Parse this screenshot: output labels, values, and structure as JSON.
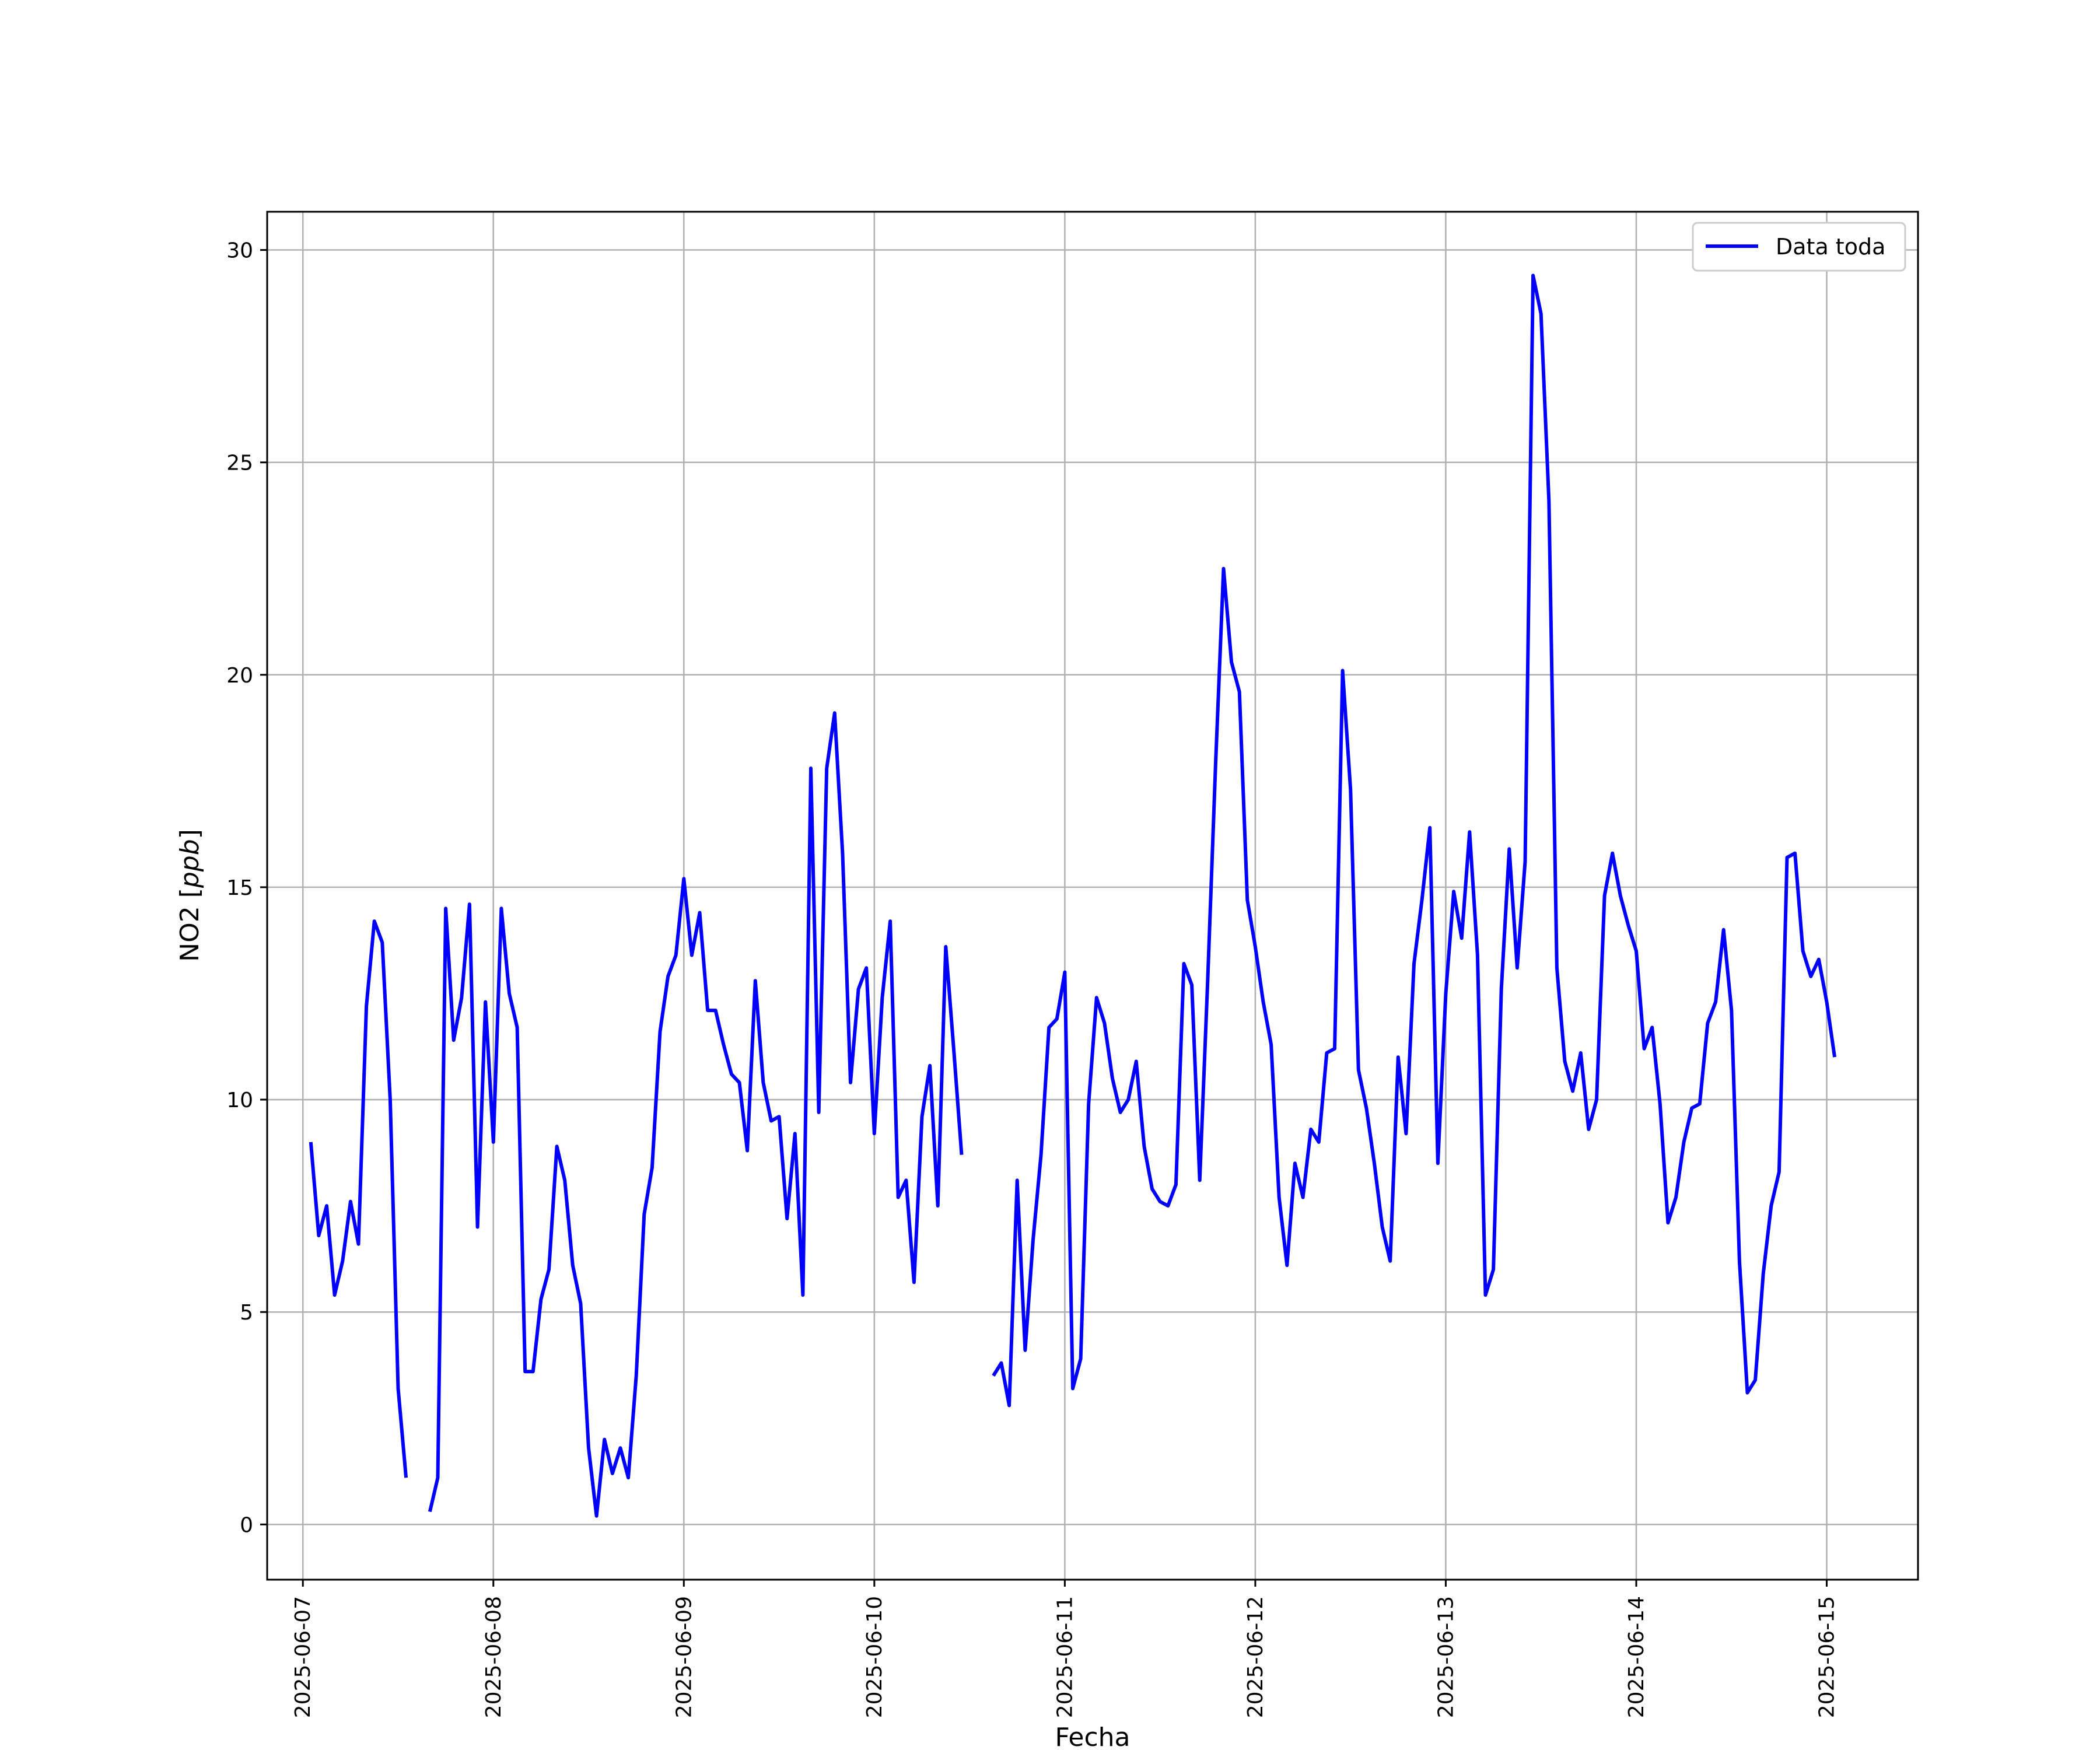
{
  "chart_data": {
    "type": "line",
    "xlabel": "Fecha",
    "ylabel": "NO2 [ppb]",
    "ylabel_main": "NO2 [",
    "ylabel_unit": "ppb",
    "ylabel_close": "]",
    "ylim": [
      -1.3,
      30.9
    ],
    "xlim": [
      "2025-06-06 19:30",
      "2025-06-15 11:30"
    ],
    "x_ticks": [
      "2025-06-07",
      "2025-06-08",
      "2025-06-09",
      "2025-06-10",
      "2025-06-11",
      "2025-06-12",
      "2025-06-13",
      "2025-06-14",
      "2025-06-15"
    ],
    "y_ticks": [
      0,
      5,
      10,
      15,
      20,
      25,
      30
    ],
    "y_tick_labels": [
      "0",
      "5",
      "10",
      "15",
      "20",
      "25",
      "30"
    ],
    "grid": true,
    "legend_position": "top-right",
    "series": [
      {
        "name": "Data toda",
        "color": "#0000ff",
        "points": [
          [
            "2025-06-07 01:00",
            9.0
          ],
          [
            "2025-06-07 02:00",
            6.8
          ],
          [
            "2025-06-07 03:00",
            7.5
          ],
          [
            "2025-06-07 04:00",
            5.4
          ],
          [
            "2025-06-07 05:00",
            6.2
          ],
          [
            "2025-06-07 06:00",
            7.6
          ],
          [
            "2025-06-07 07:00",
            6.6
          ],
          [
            "2025-06-07 08:00",
            12.2
          ],
          [
            "2025-06-07 09:00",
            14.2
          ],
          [
            "2025-06-07 10:00",
            13.7
          ],
          [
            "2025-06-07 11:00",
            10.0
          ],
          [
            "2025-06-07 12:00",
            3.2
          ],
          [
            "2025-06-07 13:00",
            1.1
          ],
          [
            "2025-06-07 14:00",
            null
          ],
          [
            "2025-06-07 15:00",
            null
          ],
          [
            "2025-06-07 16:00",
            0.3
          ],
          [
            "2025-06-07 17:00",
            1.1
          ],
          [
            "2025-06-07 18:00",
            14.5
          ],
          [
            "2025-06-07 19:00",
            11.4
          ],
          [
            "2025-06-07 20:00",
            12.4
          ],
          [
            "2025-06-07 21:00",
            14.6
          ],
          [
            "2025-06-07 22:00",
            7.0
          ],
          [
            "2025-06-07 23:00",
            12.3
          ],
          [
            "2025-06-08 00:00",
            9.0
          ],
          [
            "2025-06-08 01:00",
            14.5
          ],
          [
            "2025-06-08 02:00",
            12.5
          ],
          [
            "2025-06-08 03:00",
            11.7
          ],
          [
            "2025-06-08 04:00",
            3.6
          ],
          [
            "2025-06-08 05:00",
            3.6
          ],
          [
            "2025-06-08 06:00",
            5.3
          ],
          [
            "2025-06-08 07:00",
            6.0
          ],
          [
            "2025-06-08 08:00",
            8.9
          ],
          [
            "2025-06-08 09:00",
            8.1
          ],
          [
            "2025-06-08 10:00",
            6.1
          ],
          [
            "2025-06-08 11:00",
            5.2
          ],
          [
            "2025-06-08 12:00",
            1.8
          ],
          [
            "2025-06-08 13:00",
            0.2
          ],
          [
            "2025-06-08 14:00",
            2.0
          ],
          [
            "2025-06-08 15:00",
            1.2
          ],
          [
            "2025-06-08 16:00",
            1.8
          ],
          [
            "2025-06-08 17:00",
            1.1
          ],
          [
            "2025-06-08 18:00",
            3.5
          ],
          [
            "2025-06-08 19:00",
            7.3
          ],
          [
            "2025-06-08 20:00",
            8.4
          ],
          [
            "2025-06-08 21:00",
            11.6
          ],
          [
            "2025-06-08 22:00",
            12.9
          ],
          [
            "2025-06-08 23:00",
            13.4
          ],
          [
            "2025-06-09 00:00",
            15.2
          ],
          [
            "2025-06-09 01:00",
            13.4
          ],
          [
            "2025-06-09 02:00",
            14.4
          ],
          [
            "2025-06-09 03:00",
            12.1
          ],
          [
            "2025-06-09 04:00",
            12.1
          ],
          [
            "2025-06-09 05:00",
            11.3
          ],
          [
            "2025-06-09 06:00",
            10.6
          ],
          [
            "2025-06-09 07:00",
            10.4
          ],
          [
            "2025-06-09 08:00",
            8.8
          ],
          [
            "2025-06-09 09:00",
            12.8
          ],
          [
            "2025-06-09 10:00",
            10.4
          ],
          [
            "2025-06-09 11:00",
            9.5
          ],
          [
            "2025-06-09 12:00",
            9.6
          ],
          [
            "2025-06-09 13:00",
            7.2
          ],
          [
            "2025-06-09 14:00",
            9.2
          ],
          [
            "2025-06-09 15:00",
            5.4
          ],
          [
            "2025-06-09 16:00",
            17.8
          ],
          [
            "2025-06-09 17:00",
            9.7
          ],
          [
            "2025-06-09 18:00",
            17.8
          ],
          [
            "2025-06-09 19:00",
            19.1
          ],
          [
            "2025-06-09 20:00",
            15.8
          ],
          [
            "2025-06-09 21:00",
            10.4
          ],
          [
            "2025-06-09 22:00",
            12.6
          ],
          [
            "2025-06-09 23:00",
            13.1
          ],
          [
            "2025-06-10 00:00",
            9.2
          ],
          [
            "2025-06-10 01:00",
            12.4
          ],
          [
            "2025-06-10 02:00",
            14.2
          ],
          [
            "2025-06-10 03:00",
            7.7
          ],
          [
            "2025-06-10 04:00",
            8.1
          ],
          [
            "2025-06-10 05:00",
            5.7
          ],
          [
            "2025-06-10 06:00",
            9.6
          ],
          [
            "2025-06-10 07:00",
            10.8
          ],
          [
            "2025-06-10 08:00",
            7.5
          ],
          [
            "2025-06-10 09:00",
            13.6
          ],
          [
            "2025-06-10 10:00",
            11.2
          ],
          [
            "2025-06-10 11:00",
            8.7
          ],
          [
            "2025-06-10 12:00",
            null
          ],
          [
            "2025-06-10 13:00",
            null
          ],
          [
            "2025-06-10 14:00",
            null
          ],
          [
            "2025-06-10 15:00",
            3.5
          ],
          [
            "2025-06-10 16:00",
            3.8
          ],
          [
            "2025-06-10 17:00",
            2.8
          ],
          [
            "2025-06-10 18:00",
            8.1
          ],
          [
            "2025-06-10 19:00",
            4.1
          ],
          [
            "2025-06-10 20:00",
            6.7
          ],
          [
            "2025-06-10 21:00",
            8.7
          ],
          [
            "2025-06-10 22:00",
            11.7
          ],
          [
            "2025-06-10 23:00",
            11.9
          ],
          [
            "2025-06-11 00:00",
            13.0
          ],
          [
            "2025-06-11 01:00",
            3.2
          ],
          [
            "2025-06-11 02:00",
            3.9
          ],
          [
            "2025-06-11 03:00",
            9.9
          ],
          [
            "2025-06-11 04:00",
            12.4
          ],
          [
            "2025-06-11 05:00",
            11.8
          ],
          [
            "2025-06-11 06:00",
            10.5
          ],
          [
            "2025-06-11 07:00",
            9.7
          ],
          [
            "2025-06-11 08:00",
            10.0
          ],
          [
            "2025-06-11 09:00",
            10.9
          ],
          [
            "2025-06-11 10:00",
            8.9
          ],
          [
            "2025-06-11 11:00",
            7.9
          ],
          [
            "2025-06-11 12:00",
            7.6
          ],
          [
            "2025-06-11 13:00",
            7.5
          ],
          [
            "2025-06-11 14:00",
            8.0
          ],
          [
            "2025-06-11 15:00",
            13.2
          ],
          [
            "2025-06-11 16:00",
            12.7
          ],
          [
            "2025-06-11 17:00",
            8.1
          ],
          [
            "2025-06-11 18:00",
            12.8
          ],
          [
            "2025-06-11 19:00",
            17.9
          ],
          [
            "2025-06-11 20:00",
            22.5
          ],
          [
            "2025-06-11 21:00",
            20.3
          ],
          [
            "2025-06-11 22:00",
            19.6
          ],
          [
            "2025-06-11 23:00",
            14.7
          ],
          [
            "2025-06-12 00:00",
            13.6
          ],
          [
            "2025-06-12 01:00",
            12.3
          ],
          [
            "2025-06-12 02:00",
            11.3
          ],
          [
            "2025-06-12 03:00",
            7.7
          ],
          [
            "2025-06-12 04:00",
            6.1
          ],
          [
            "2025-06-12 05:00",
            8.5
          ],
          [
            "2025-06-12 06:00",
            7.7
          ],
          [
            "2025-06-12 07:00",
            9.3
          ],
          [
            "2025-06-12 08:00",
            9.0
          ],
          [
            "2025-06-12 09:00",
            11.1
          ],
          [
            "2025-06-12 10:00",
            11.2
          ],
          [
            "2025-06-12 11:00",
            20.1
          ],
          [
            "2025-06-12 12:00",
            17.3
          ],
          [
            "2025-06-12 13:00",
            10.7
          ],
          [
            "2025-06-12 14:00",
            9.8
          ],
          [
            "2025-06-12 15:00",
            8.5
          ],
          [
            "2025-06-12 16:00",
            7.0
          ],
          [
            "2025-06-12 17:00",
            6.2
          ],
          [
            "2025-06-12 18:00",
            11.0
          ],
          [
            "2025-06-12 19:00",
            9.2
          ],
          [
            "2025-06-12 20:00",
            13.2
          ],
          [
            "2025-06-12 21:00",
            14.7
          ],
          [
            "2025-06-12 22:00",
            16.4
          ],
          [
            "2025-06-12 23:00",
            8.5
          ],
          [
            "2025-06-13 00:00",
            12.5
          ],
          [
            "2025-06-13 01:00",
            14.9
          ],
          [
            "2025-06-13 02:00",
            13.8
          ],
          [
            "2025-06-13 03:00",
            16.3
          ],
          [
            "2025-06-13 04:00",
            13.4
          ],
          [
            "2025-06-13 05:00",
            5.4
          ],
          [
            "2025-06-13 06:00",
            6.0
          ],
          [
            "2025-06-13 07:00",
            12.6
          ],
          [
            "2025-06-13 08:00",
            15.9
          ],
          [
            "2025-06-13 09:00",
            13.1
          ],
          [
            "2025-06-13 10:00",
            15.6
          ],
          [
            "2025-06-13 11:00",
            29.4
          ],
          [
            "2025-06-13 12:00",
            28.5
          ],
          [
            "2025-06-13 13:00",
            24.1
          ],
          [
            "2025-06-13 14:00",
            13.1
          ],
          [
            "2025-06-13 15:00",
            10.9
          ],
          [
            "2025-06-13 16:00",
            10.2
          ],
          [
            "2025-06-13 17:00",
            11.1
          ],
          [
            "2025-06-13 18:00",
            9.3
          ],
          [
            "2025-06-13 19:00",
            10.0
          ],
          [
            "2025-06-13 20:00",
            14.8
          ],
          [
            "2025-06-13 21:00",
            15.8
          ],
          [
            "2025-06-13 22:00",
            14.8
          ],
          [
            "2025-06-13 23:00",
            14.1
          ],
          [
            "2025-06-14 00:00",
            13.5
          ],
          [
            "2025-06-14 01:00",
            11.2
          ],
          [
            "2025-06-14 02:00",
            11.7
          ],
          [
            "2025-06-14 03:00",
            9.9
          ],
          [
            "2025-06-14 04:00",
            7.1
          ],
          [
            "2025-06-14 05:00",
            7.7
          ],
          [
            "2025-06-14 06:00",
            9.0
          ],
          [
            "2025-06-14 07:00",
            9.8
          ],
          [
            "2025-06-14 08:00",
            9.9
          ],
          [
            "2025-06-14 09:00",
            11.8
          ],
          [
            "2025-06-14 10:00",
            12.3
          ],
          [
            "2025-06-14 11:00",
            14.0
          ],
          [
            "2025-06-14 12:00",
            12.1
          ],
          [
            "2025-06-14 13:00",
            6.2
          ],
          [
            "2025-06-14 14:00",
            3.1
          ],
          [
            "2025-06-14 15:00",
            3.4
          ],
          [
            "2025-06-14 16:00",
            5.9
          ],
          [
            "2025-06-14 17:00",
            7.5
          ],
          [
            "2025-06-14 18:00",
            8.3
          ],
          [
            "2025-06-14 19:00",
            15.7
          ],
          [
            "2025-06-14 20:00",
            15.8
          ],
          [
            "2025-06-14 21:00",
            13.5
          ],
          [
            "2025-06-14 22:00",
            12.9
          ],
          [
            "2025-06-14 23:00",
            13.3
          ],
          [
            "2025-06-15 00:00",
            12.3
          ],
          [
            "2025-06-15 01:00",
            11.0
          ]
        ]
      }
    ]
  }
}
